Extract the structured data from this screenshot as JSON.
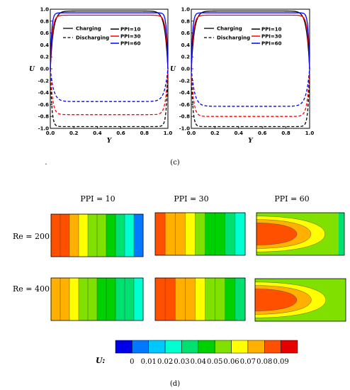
{
  "chart_data": [
    {
      "type": "line",
      "panel": "left",
      "xlabel": "Y",
      "ylabel": "U",
      "xlim": [
        0.0,
        1.0
      ],
      "ylim": [
        -1.0,
        1.0
      ],
      "xticks": [
        "0.0",
        "0.2",
        "0.4",
        "0.6",
        "0.8",
        "1.0"
      ],
      "yticks": [
        "-1.0",
        "-0.8",
        "-0.6",
        "-0.4",
        "-0.2",
        "0.0",
        "0.2",
        "0.4",
        "0.6",
        "0.8",
        "1.0"
      ],
      "legend_styles": [
        {
          "label": "Charging",
          "style": "solid"
        },
        {
          "label": "Discharging",
          "style": "dashed"
        }
      ],
      "series": [
        {
          "name": "PPI=10",
          "color": "#000000",
          "charging_plateau": 0.97,
          "discharging_plateau": -0.97
        },
        {
          "name": "PPI=30",
          "color": "#ff0000",
          "charging_plateau": 0.9,
          "discharging_plateau": -0.77
        },
        {
          "name": "PPI=60",
          "color": "#0000ff",
          "charging_plateau": 0.94,
          "discharging_plateau": -0.55
        }
      ]
    },
    {
      "type": "line",
      "panel": "right",
      "xlabel": "Y",
      "ylabel": "U",
      "xlim": [
        0.0,
        1.0
      ],
      "ylim": [
        -1.0,
        1.0
      ],
      "xticks": [
        "0.0",
        "0.2",
        "0.4",
        "0.6",
        "0.8",
        "1.0"
      ],
      "yticks": [
        "-1.0",
        "-0.8",
        "-0.6",
        "-0.4",
        "-0.2",
        "0.0",
        "0.2",
        "0.4",
        "0.6",
        "0.8",
        "1.0"
      ],
      "legend_styles": [
        {
          "label": "Charging",
          "style": "solid"
        },
        {
          "label": "Discharging",
          "style": "dashed"
        }
      ],
      "series": [
        {
          "name": "PPI=10",
          "color": "#000000",
          "charging_plateau": 0.97,
          "discharging_plateau": -0.97
        },
        {
          "name": "PPI=30",
          "color": "#ff0000",
          "charging_plateau": 0.9,
          "discharging_plateau": -0.8
        },
        {
          "name": "PPI=60",
          "color": "#0000ff",
          "charging_plateau": 0.94,
          "discharging_plateau": -0.63
        }
      ]
    },
    {
      "type": "heatmap",
      "columns": [
        "PPI = 10",
        "PPI = 30",
        "PPI = 60"
      ],
      "rows": [
        "Re = 200",
        "Re = 400"
      ],
      "colorbar": {
        "label": "U:",
        "ticks": [
          "0",
          "0.01",
          "0.02",
          "0.03",
          "0.04",
          "0.05",
          "0.06",
          "0.07",
          "0.08",
          "0.09"
        ],
        "colors": [
          "#0000e6",
          "#0078ff",
          "#00c8ff",
          "#00ffd0",
          "#00e070",
          "#00d000",
          "#80e000",
          "#ffff00",
          "#ffb000",
          "#ff5000",
          "#e60000"
        ]
      }
    }
  ],
  "captions": {
    "c": "(c)",
    "d": "(d)",
    "dot": "."
  }
}
